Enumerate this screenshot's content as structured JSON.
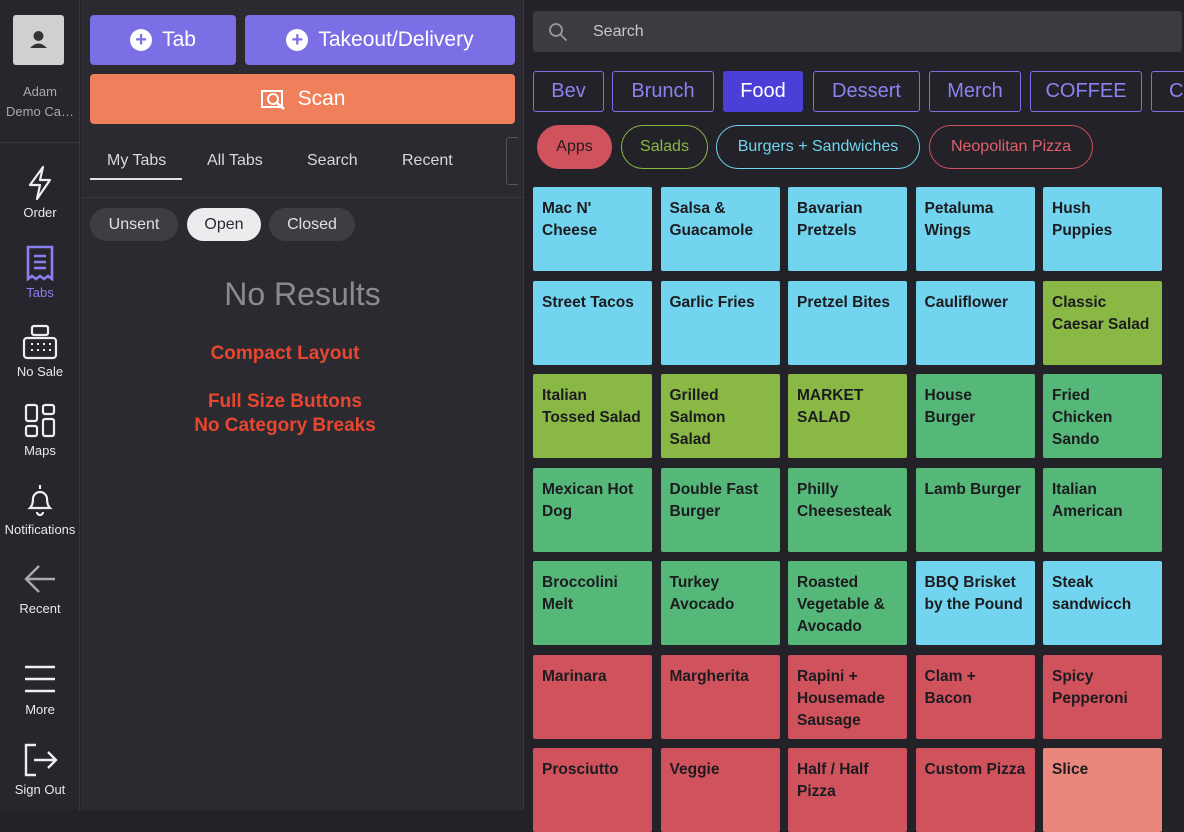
{
  "user": {
    "name": "Adam",
    "location": "Demo Ca…"
  },
  "nav": [
    "Order",
    "Tabs",
    "No Sale",
    "Maps",
    "Notifications",
    "Recent",
    "More",
    "Sign Out"
  ],
  "buttons": {
    "tab": "Tab",
    "takeout": "Takeout/Delivery",
    "scan": "Scan"
  },
  "tab_filters": [
    "My Tabs",
    "All Tabs",
    "Search",
    "Recent"
  ],
  "status_filters": [
    "Unsent",
    "Open",
    "Closed"
  ],
  "empty_state": "No Results",
  "notes": [
    "Compact Layout",
    "Full Size Buttons",
    "No Category Breaks"
  ],
  "search_placeholder": "Search",
  "menus": [
    "Bev",
    "Brunch",
    "Food",
    "Dessert",
    "Merch",
    "COFFEE",
    "C"
  ],
  "categories": [
    "Apps",
    "Salads",
    "Burgers + Sandwiches",
    "Neopolitan Pizza"
  ],
  "items": [
    {
      "name": "Mac N' Cheese",
      "color": "#72d4ee"
    },
    {
      "name": "Salsa & Guacamole",
      "color": "#72d4ee"
    },
    {
      "name": "Bavarian Pretzels",
      "color": "#72d4ee"
    },
    {
      "name": "Petaluma Wings",
      "color": "#72d4ee"
    },
    {
      "name": "Hush Puppies",
      "color": "#72d4ee"
    },
    {
      "name": "Street Tacos",
      "color": "#72d4ee"
    },
    {
      "name": "Garlic Fries",
      "color": "#72d4ee"
    },
    {
      "name": "Pretzel Bites",
      "color": "#72d4ee"
    },
    {
      "name": "Cauliflower",
      "color": "#72d4ee"
    },
    {
      "name": "Classic Caesar Salad",
      "color": "#8ab844"
    },
    {
      "name": "Italian Tossed Salad",
      "color": "#8ab844"
    },
    {
      "name": "Grilled Salmon Salad",
      "color": "#8ab844"
    },
    {
      "name": "MARKET SALAD",
      "color": "#8ab844"
    },
    {
      "name": "House Burger",
      "color": "#55b878"
    },
    {
      "name": "Fried Chicken Sando",
      "color": "#55b878"
    },
    {
      "name": "Mexican Hot Dog",
      "color": "#55b878"
    },
    {
      "name": "Double Fast Burger",
      "color": "#55b878"
    },
    {
      "name": "Philly Cheesesteak",
      "color": "#55b878"
    },
    {
      "name": "Lamb Burger",
      "color": "#55b878"
    },
    {
      "name": "Italian American",
      "color": "#55b878"
    },
    {
      "name": "Broccolini Melt",
      "color": "#55b878"
    },
    {
      "name": "Turkey Avocado",
      "color": "#55b878"
    },
    {
      "name": "Roasted Vegetable & Avocado",
      "color": "#55b878"
    },
    {
      "name": "BBQ Brisket by the Pound",
      "color": "#72d4ee"
    },
    {
      "name": "Steak sandwicch",
      "color": "#72d4ee"
    },
    {
      "name": "Marinara",
      "color": "#d0525c"
    },
    {
      "name": "Margherita",
      "color": "#d0525c"
    },
    {
      "name": "Rapini + Housemade Sausage",
      "color": "#d0525c"
    },
    {
      "name": "Clam + Bacon",
      "color": "#d0525c"
    },
    {
      "name": "Spicy Pepperoni",
      "color": "#d0525c"
    },
    {
      "name": "Prosciutto",
      "color": "#d0525c"
    },
    {
      "name": "Veggie",
      "color": "#d0525c"
    },
    {
      "name": "Half / Half Pizza",
      "color": "#d0525c"
    },
    {
      "name": "Custom Pizza",
      "color": "#d0525c"
    },
    {
      "name": "Slice",
      "color": "#e9877c"
    }
  ]
}
